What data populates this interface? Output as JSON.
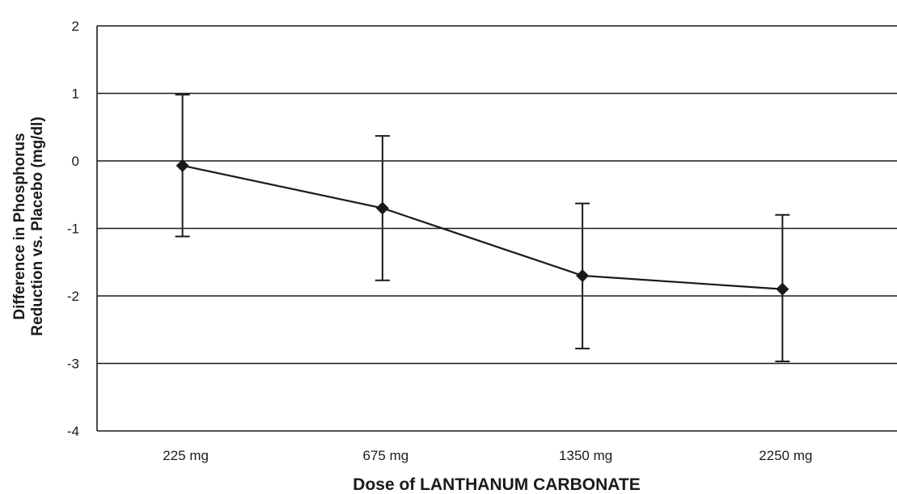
{
  "chart_data": {
    "type": "line",
    "title": "",
    "xlabel": "Dose of LANTHANUM CARBONATE",
    "ylabel_lines": [
      "Difference in Phosphorus",
      "Reduction vs. Placebo (mg/dl)"
    ],
    "categories": [
      "225 mg",
      "675 mg",
      "1350 mg",
      "2250 mg"
    ],
    "values": [
      -0.07,
      -0.7,
      -1.7,
      -1.9
    ],
    "error_low": [
      -1.12,
      -1.77,
      -2.78,
      -2.97
    ],
    "error_high": [
      0.98,
      0.37,
      -0.63,
      -0.8
    ],
    "ylim": [
      -4,
      2
    ],
    "yticks": [
      "2",
      "1",
      "0",
      "-1",
      "-2",
      "-3",
      "-4"
    ],
    "grid": true,
    "legend": "none",
    "marker": "diamond",
    "color": "#1a1a1a"
  }
}
